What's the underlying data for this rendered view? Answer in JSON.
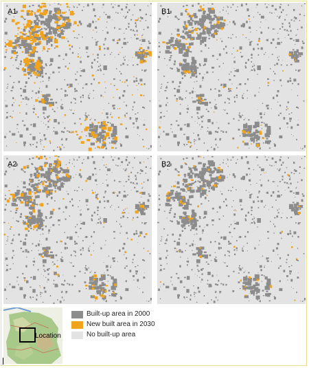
{
  "panels": [
    {
      "label": "A1",
      "id": "a1",
      "growth": 1.0
    },
    {
      "label": "B1",
      "id": "b1",
      "growth": 0.25
    },
    {
      "label": "A2",
      "id": "a2",
      "growth": 0.5
    },
    {
      "label": "B2",
      "id": "b2",
      "growth": 0.2
    }
  ],
  "legend": {
    "items": [
      {
        "label": "Built-up area in 2000",
        "color": "#8c8c8c"
      },
      {
        "label": "New built area in 2030",
        "color": "#f0a41e"
      },
      {
        "label": "No built-up area",
        "color": "#e3e3e3"
      }
    ]
  },
  "locator": {
    "label": "Location"
  },
  "colors": {
    "background": "#e3e3e3",
    "builtup": "#8c8c8c",
    "newbuilt": "#f0a41e",
    "frame": "#e8df8a"
  }
}
